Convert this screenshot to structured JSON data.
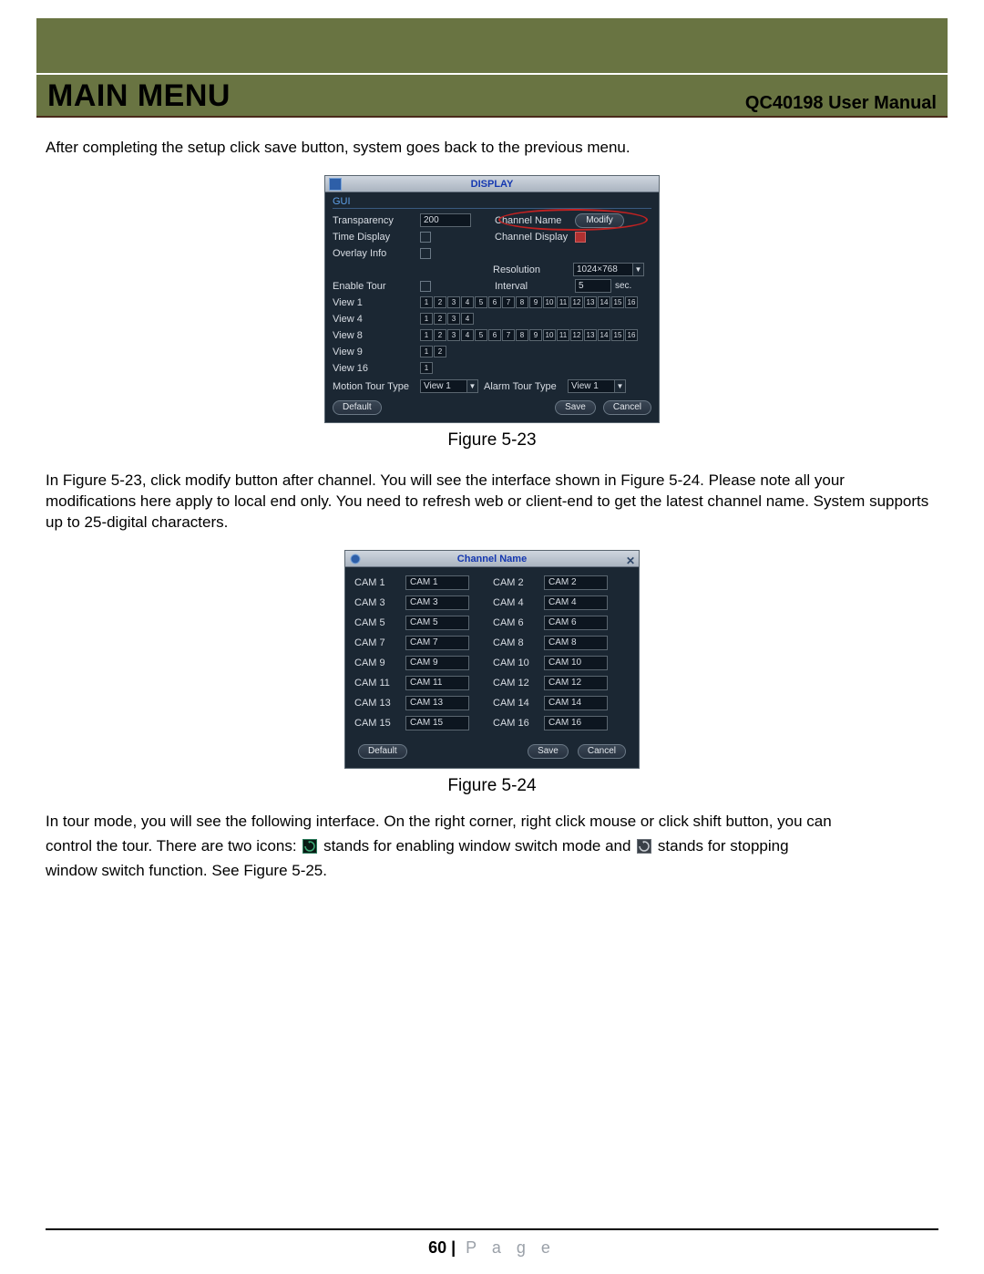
{
  "header": {
    "main": "MAIN MENU",
    "right": "QC40198 User Manual"
  },
  "para1": "After completing the setup click save button, system goes back to the previous menu.",
  "fig523_caption": "Figure 5-23",
  "para2": "In Figure 5-23, click modify button after channel. You will see the interface shown in Figure 5-24. Please note all your modifications here apply to local end only. You need to refresh web or client-end to get the latest channel name. System supports up to 25-digital characters.",
  "fig524_caption": "Figure 5-24",
  "para3a": "In tour mode, you will see the following interface. On the right corner, right click mouse or click shift button, you can",
  "para3b": "control the tour. There are two icons: ",
  "para3c": " stands for enabling window switch mode and ",
  "para3d": " stands for stopping",
  "para3e": "window switch function. See Figure 5-25.",
  "footer": {
    "page_num": "60",
    "sep": " | ",
    "word": "P a g e"
  },
  "dlg1": {
    "title": "DISPLAY",
    "section": "GUI",
    "rows": {
      "transparency_lbl": "Transparency",
      "transparency_val": "200",
      "channel_name_lbl": "Channel Name",
      "modify_btn": "Modify",
      "time_display_lbl": "Time Display",
      "channel_display_lbl": "Channel Display",
      "overlay_lbl": "Overlay Info",
      "resolution_lbl": "Resolution",
      "resolution_val": "1024×768",
      "enable_tour_lbl": "Enable Tour",
      "interval_lbl": "Interval",
      "interval_val": "5",
      "interval_unit": "sec.",
      "view1_lbl": "View 1",
      "view4_lbl": "View 4",
      "view8_lbl": "View 8",
      "view9_lbl": "View 9",
      "view16_lbl": "View 16",
      "motion_lbl": "Motion Tour Type",
      "motion_val": "View 1",
      "alarm_lbl": "Alarm Tour Type",
      "alarm_val": "View 1"
    },
    "view1_nums": [
      "1",
      "2",
      "3",
      "4",
      "5",
      "6",
      "7",
      "8",
      "9",
      "10",
      "11",
      "12",
      "13",
      "14",
      "15",
      "16"
    ],
    "view4_nums": [
      "1",
      "2",
      "3",
      "4"
    ],
    "view8_nums": [
      "1",
      "2",
      "3",
      "4",
      "5",
      "6",
      "7",
      "8",
      "9",
      "10",
      "11",
      "12",
      "13",
      "14",
      "15",
      "16"
    ],
    "view9_nums": [
      "1",
      "2"
    ],
    "view16_nums": [
      "1"
    ],
    "default_btn": "Default",
    "save_btn": "Save",
    "cancel_btn": "Cancel"
  },
  "dlg2": {
    "title": "Channel Name",
    "rows": [
      {
        "l1": "CAM 1",
        "v1": "CAM 1",
        "l2": "CAM 2",
        "v2": "CAM 2"
      },
      {
        "l1": "CAM 3",
        "v1": "CAM 3",
        "l2": "CAM 4",
        "v2": "CAM 4"
      },
      {
        "l1": "CAM 5",
        "v1": "CAM 5",
        "l2": "CAM 6",
        "v2": "CAM 6"
      },
      {
        "l1": "CAM 7",
        "v1": "CAM 7",
        "l2": "CAM 8",
        "v2": "CAM 8"
      },
      {
        "l1": "CAM 9",
        "v1": "CAM 9",
        "l2": "CAM 10",
        "v2": "CAM 10"
      },
      {
        "l1": "CAM 11",
        "v1": "CAM 11",
        "l2": "CAM 12",
        "v2": "CAM 12"
      },
      {
        "l1": "CAM 13",
        "v1": "CAM 13",
        "l2": "CAM 14",
        "v2": "CAM 14"
      },
      {
        "l1": "CAM 15",
        "v1": "CAM 15",
        "l2": "CAM 16",
        "v2": "CAM 16"
      }
    ],
    "default_btn": "Default",
    "save_btn": "Save",
    "cancel_btn": "Cancel"
  }
}
